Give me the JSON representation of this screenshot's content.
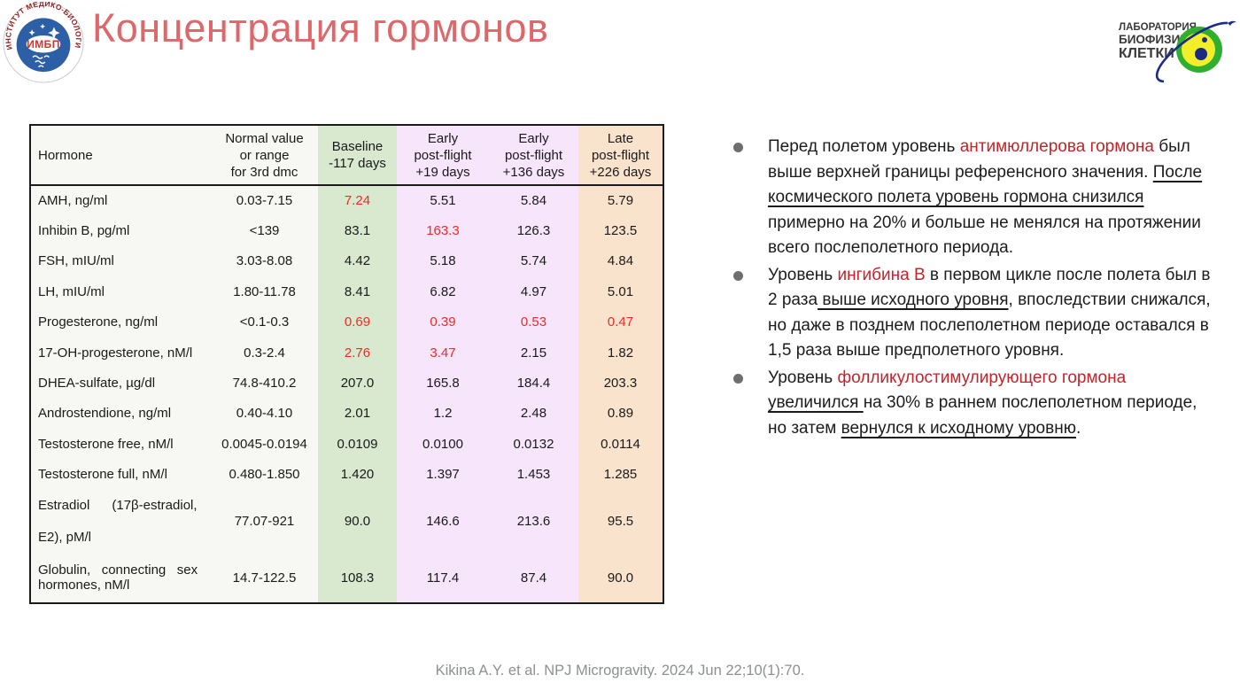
{
  "slide": {
    "title": "Концентрация гормонов",
    "citation": "Kikina A.Y. et al. NPJ Microgravity. 2024 Jun 22;10(1):70."
  },
  "logo_left": {
    "name": "imbp-logo",
    "ring_text": "ИНСТИТУТ МЕДИКО-БИОЛОГИЧЕСКИХ ПРОБЛЕМ ✦",
    "abbr": "ИМБП"
  },
  "logo_right": {
    "name": "cell-biophysics-lab-logo",
    "lines": [
      "ЛАБОРАТОРИЯ",
      "БИОФИЗИКИ",
      "КЛЕТКИ"
    ]
  },
  "table": {
    "headers": [
      "Hormone",
      "Normal value\nor range\nfor 3rd dmc",
      "Baseline\n-117 days",
      "Early\npost-flight\n+19 days",
      "Early\npost-flight\n+136 days",
      "Late\npost-flight\n+226 days"
    ],
    "rows": [
      {
        "name": "AMH, ng/ml",
        "normal": "0.03-7.15",
        "values": [
          "7.24",
          "5.51",
          "5.84",
          "5.79"
        ],
        "red": [
          0
        ]
      },
      {
        "name": "Inhibin B, pg/ml",
        "normal": "<139",
        "values": [
          "83.1",
          "163.3",
          "126.3",
          "123.5"
        ],
        "red": [
          1
        ]
      },
      {
        "name": "FSH, mIU/ml",
        "normal": "3.03-8.08",
        "values": [
          "4.42",
          "5.18",
          "5.74",
          "4.84"
        ],
        "red": []
      },
      {
        "name": "LH, mIU/ml",
        "normal": "1.80-11.78",
        "values": [
          "8.41",
          "6.82",
          "4.97",
          "5.01"
        ],
        "red": []
      },
      {
        "name": "Progesterone, ng/ml",
        "normal": "<0.1-0.3",
        "values": [
          "0.69",
          "0.39",
          "0.53",
          "0.47"
        ],
        "red": [
          0,
          1,
          2,
          3
        ]
      },
      {
        "name": "17-OH-progesterone, nM/l",
        "normal": "0.3-2.4",
        "values": [
          "2.76",
          "3.47",
          "2.15",
          "1.82"
        ],
        "red": [
          0,
          1
        ]
      },
      {
        "name": "DHEA-sulfate, µg/dl",
        "normal": "74.8-410.2",
        "values": [
          "207.0",
          "165.8",
          "184.4",
          "203.3"
        ],
        "red": []
      },
      {
        "name": "Androstendione, ng/ml",
        "normal": "0.40-4.10",
        "values": [
          "2.01",
          "1.2",
          "2.48",
          "0.89"
        ],
        "red": []
      },
      {
        "name": "Testosterone free, nM/l",
        "normal": "0.0045-0.0194",
        "values": [
          "0.0109",
          "0.0100",
          "0.0132",
          "0.0114"
        ],
        "red": []
      },
      {
        "name": "Testosterone full, nM/l",
        "normal": "0.480-1.850",
        "values": [
          "1.420",
          "1.397",
          "1.453",
          "1.285"
        ],
        "red": []
      },
      {
        "name": "Estradiol      (17β-estradiol,\nE2), pM/l",
        "normal": "77.07-921",
        "values": [
          "90.0",
          "146.6",
          "213.6",
          "95.5"
        ],
        "red": [],
        "tall": true
      },
      {
        "name": "Globulin,   connecting   sex\nhormones, nM/l",
        "normal": "14.7-122.5",
        "values": [
          "108.3",
          "117.4",
          "87.4",
          "90.0"
        ],
        "red": [],
        "twoline": true
      }
    ]
  },
  "bullets": [
    {
      "segments": [
        {
          "t": "Перед полетом уровень "
        },
        {
          "t": "антимюллерова гормона",
          "style": "red"
        },
        {
          "t": " был выше верхней границы референсного значения. "
        },
        {
          "t": "После космического полета уровень гормона снизился",
          "style": "underline"
        },
        {
          "t": " примерно на 20% и больше не менялся на протяжении всего послеполетного периода."
        }
      ]
    },
    {
      "segments": [
        {
          "t": "Уровень "
        },
        {
          "t": "ингибина В",
          "style": "red"
        },
        {
          "t": " в первом цикле после полета был в 2 раза"
        },
        {
          "t": " выше исходного уровня",
          "style": "underline"
        },
        {
          "t": ", впоследствии снижался, но даже в позднем послеполетном периоде оставался в 1,5 раза выше предполетного уровня."
        }
      ]
    },
    {
      "segments": [
        {
          "t": "Уровень "
        },
        {
          "t": "фолликулостимулирующего гормона",
          "style": "red"
        },
        {
          "t": " "
        },
        {
          "t": "увеличился ",
          "style": "underline"
        },
        {
          "t": "на 30% в раннем послеполетном периоде, но затем "
        },
        {
          "t": "вернулся к исходному уровню",
          "style": "underline"
        },
        {
          "t": "."
        }
      ]
    }
  ],
  "colors": {
    "title": "#dc686c",
    "red_text": "#c2242a",
    "table_red": "#ee2c23",
    "col_green": "#d8e9d0",
    "col_lavender": "#f6e5fb",
    "col_peach": "#fae3cd",
    "col_gray": "#f7f7f4"
  }
}
